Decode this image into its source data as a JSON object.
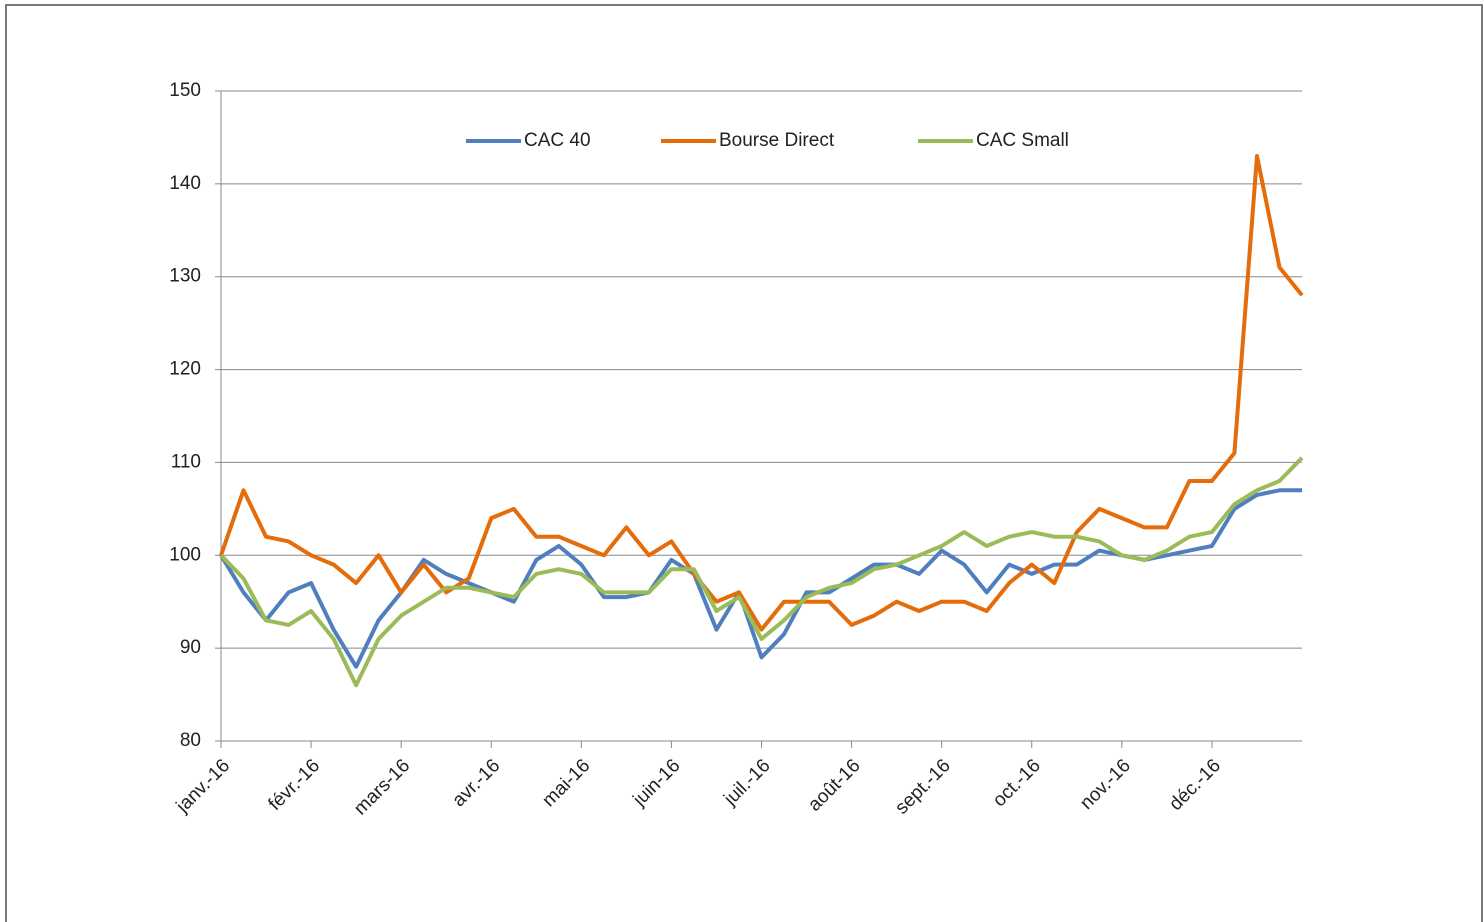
{
  "chart_data": {
    "type": "line",
    "categories": [
      "janv.-16",
      null,
      null,
      null,
      "févr.-16",
      null,
      null,
      null,
      "mars-16",
      null,
      null,
      null,
      "avr.-16",
      null,
      null,
      null,
      "mai-16",
      null,
      null,
      null,
      "juin-16",
      null,
      null,
      null,
      "juil.-16",
      null,
      null,
      null,
      "août-16",
      null,
      null,
      null,
      "sept.-16",
      null,
      null,
      null,
      "oct.-16",
      null,
      null,
      null,
      "nov.-16",
      null,
      null,
      null,
      "déc.-16",
      null,
      null,
      null,
      null
    ],
    "series": [
      {
        "name": "CAC 40",
        "color": "#4f7fbf",
        "values": [
          100,
          96,
          93,
          96,
          97,
          92,
          88,
          93,
          96,
          99.5,
          98,
          97,
          96,
          95,
          99.5,
          101,
          99,
          95.5,
          95.5,
          96,
          99.5,
          98,
          92,
          96,
          89,
          91.5,
          96,
          96,
          97.5,
          99,
          99,
          98,
          100.5,
          99,
          96,
          99,
          98,
          99,
          99,
          100.5,
          100,
          99.5,
          100,
          100.5,
          101,
          105,
          106.5,
          107,
          107
        ]
      },
      {
        "name": "Bourse Direct",
        "color": "#e46c0a",
        "values": [
          100,
          107,
          102,
          101.5,
          100,
          99,
          97,
          100,
          96,
          99,
          96,
          97.5,
          104,
          105,
          102,
          102,
          101,
          100,
          103,
          100,
          101.5,
          98,
          95,
          96,
          92,
          95,
          95,
          95,
          92.5,
          93.5,
          95,
          94,
          95,
          95,
          94,
          97,
          99,
          97,
          102.5,
          105,
          104,
          103,
          103,
          108,
          108,
          111,
          143,
          131,
          128
        ]
      },
      {
        "name": "CAC Small",
        "color": "#9bbb59",
        "values": [
          100,
          97.5,
          93,
          92.5,
          94,
          91,
          86,
          91,
          93.5,
          95,
          96.5,
          96.5,
          96,
          95.5,
          98,
          98.5,
          98,
          96,
          96,
          96,
          98.5,
          98.5,
          94,
          95.5,
          91,
          93,
          95.5,
          96.5,
          97,
          98.5,
          99,
          100,
          101,
          102.5,
          101,
          102,
          102.5,
          102,
          102,
          101.5,
          100,
          99.5,
          100.5,
          102,
          102.5,
          105.5,
          107,
          108,
          110.5
        ]
      }
    ],
    "ylim": [
      80,
      150
    ],
    "yticks": [
      80,
      90,
      100,
      110,
      120,
      130,
      140,
      150
    ],
    "grid": true,
    "legend": "top"
  }
}
